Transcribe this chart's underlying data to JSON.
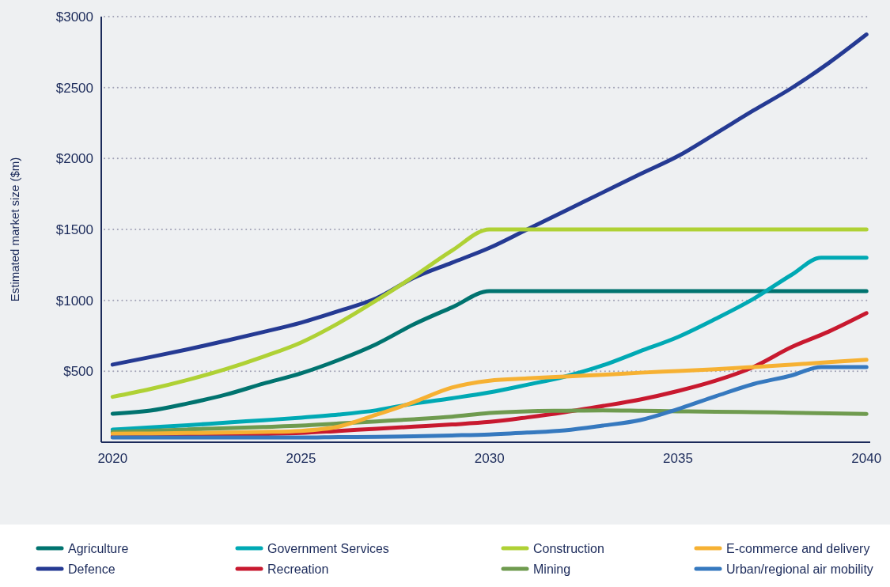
{
  "chart_data": {
    "type": "line",
    "ylabel": "Estimated market size ($m)",
    "x": [
      2020,
      2021,
      2022,
      2023,
      2024,
      2025,
      2026,
      2027,
      2028,
      2029,
      2030,
      2031,
      2032,
      2033,
      2034,
      2035,
      2036,
      2037,
      2038,
      2039,
      2040
    ],
    "xlim": [
      2019.7,
      2040.1
    ],
    "xticks": [
      2020,
      2025,
      2030,
      2035,
      2040
    ],
    "ylim": [
      0,
      3000
    ],
    "yticks": [
      {
        "value": 500,
        "label": "$500"
      },
      {
        "value": 1000,
        "label": "$1000"
      },
      {
        "value": 1500,
        "label": "$1500"
      },
      {
        "value": 2000,
        "label": "$2000"
      },
      {
        "value": 2500,
        "label": "$2500"
      },
      {
        "value": 3000,
        "label": "$3000"
      }
    ],
    "grid": "y",
    "legend": "bottom",
    "marker": "none",
    "line_style": "solid",
    "series": [
      {
        "name": "Agriculture",
        "color": "#00736f",
        "values": [
          201,
          223,
          274,
          335,
          413,
          486,
          580,
          692,
          832,
          950,
          1065,
          1065,
          1065,
          1065,
          1065,
          1065,
          1065,
          1065,
          1065,
          1065,
          1065
        ]
      },
      {
        "name": "Defence",
        "color": "#253a93",
        "values": [
          547,
          600,
          655,
          715,
          777,
          843,
          925,
          1015,
          1160,
          1265,
          1370,
          1500,
          1630,
          1760,
          1890,
          2017,
          2176,
          2338,
          2494,
          2673,
          2874
        ]
      },
      {
        "name": "Government Services",
        "color": "#00a9b4",
        "x": [
          2020,
          2021,
          2022,
          2023,
          2024,
          2025,
          2026,
          2027,
          2028,
          2029,
          2030,
          2031,
          2032,
          2033,
          2034,
          2035,
          2036,
          2037,
          2038,
          2038.8,
          2039,
          2040
        ],
        "values": [
          89,
          105,
          120,
          138,
          155,
          173,
          195,
          225,
          273,
          310,
          351,
          405,
          463,
          541,
          642,
          742,
          870,
          1010,
          1178,
          1300,
          1300,
          1300
        ]
      },
      {
        "name": "Recreation",
        "color": "#c8192f",
        "values": [
          40,
          43,
          47,
          52,
          58,
          65,
          80,
          95,
          110,
          125,
          143,
          175,
          212,
          255,
          301,
          361,
          434,
          530,
          669,
          780,
          910
        ]
      },
      {
        "name": "Construction",
        "color": "#afd135",
        "values": [
          320,
          375,
          440,
          515,
          603,
          703,
          840,
          1000,
          1170,
          1350,
          1500,
          1500,
          1500,
          1500,
          1500,
          1500,
          1500,
          1500,
          1500,
          1500,
          1500
        ]
      },
      {
        "name": "Mining",
        "color": "#6f9b4f",
        "values": [
          72,
          81,
          90,
          99,
          108,
          117,
          132,
          147,
          162,
          180,
          206,
          218,
          222,
          225,
          222,
          218,
          215,
          212,
          208,
          204,
          200
        ]
      },
      {
        "name": "E-commerce and delivery",
        "color": "#f6b133",
        "values": [
          60,
          62,
          65,
          68,
          72,
          80,
          110,
          194,
          284,
          385,
          434,
          450,
          463,
          475,
          490,
          502,
          515,
          530,
          546,
          565,
          581
        ]
      },
      {
        "name": "Urban/regional air mobility",
        "color": "#3679bf",
        "x": [
          2020,
          2021,
          2022,
          2023,
          2024,
          2025,
          2026,
          2027,
          2028,
          2029,
          2030,
          2031,
          2032,
          2033,
          2034,
          2035,
          2036,
          2037,
          2038,
          2038.8,
          2039,
          2040
        ],
        "values": [
          33,
          33,
          33,
          33,
          33,
          33,
          36,
          38,
          42,
          48,
          55,
          68,
          84,
          117,
          156,
          234,
          324,
          410,
          470,
          530,
          530,
          530
        ]
      }
    ]
  }
}
